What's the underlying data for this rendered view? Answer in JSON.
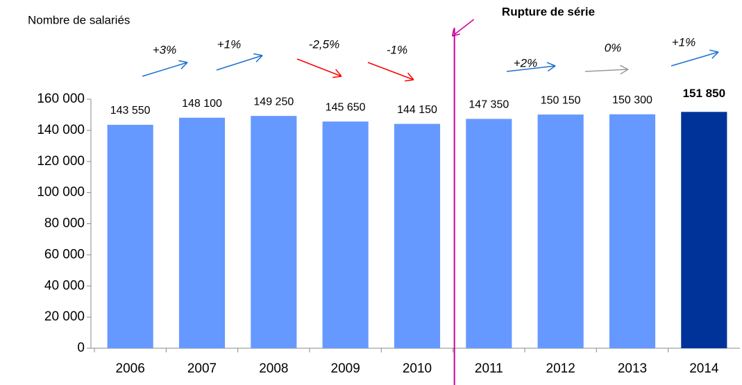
{
  "chart_data": {
    "type": "bar",
    "y_axis_label": "Nombre de salariés",
    "break_label": "Rupture de série",
    "categories": [
      "2006",
      "2007",
      "2008",
      "2009",
      "2010",
      "2011",
      "2012",
      "2013",
      "2014"
    ],
    "values": [
      143550,
      148100,
      149250,
      145650,
      144150,
      147350,
      150150,
      150300,
      151850
    ],
    "value_labels": [
      "143 550",
      "148 100",
      "149 250",
      "145 650",
      "144 150",
      "147 350",
      "150 150",
      "150 300",
      "151 850"
    ],
    "colors": [
      "#6699ff",
      "#6699ff",
      "#6699ff",
      "#6699ff",
      "#6699ff",
      "#6699ff",
      "#6699ff",
      "#6699ff",
      "#003399"
    ],
    "ylim": [
      0,
      160000
    ],
    "yticks": [
      0,
      {
        "value": 20000,
        "label": "20 000"
      },
      {
        "value": 40000,
        "label": "40 000"
      },
      {
        "value": 60000,
        "label": "60 000"
      },
      {
        "value": 80000,
        "label": "80 000"
      },
      {
        "value": 100000,
        "label": "100 000"
      },
      {
        "value": 120000,
        "label": "120 000"
      },
      {
        "value": 140000,
        "label": "140 000"
      },
      {
        "value": 160000,
        "label": "160 000"
      }
    ],
    "annotations": [
      {
        "text": "+3%",
        "color": "#1a6fd0"
      },
      {
        "text": "+1%",
        "color": "#1a6fd0"
      },
      {
        "text": "-2,5%",
        "color": "#ff0000"
      },
      {
        "text": "-1%",
        "color": "#ff0000"
      },
      {
        "text": "+2%",
        "color": "#1a6fd0"
      },
      {
        "text": "0%",
        "color": "#999999"
      },
      {
        "text": "+1%",
        "color": "#1a6fd0"
      }
    ],
    "break_color": "#cc0099"
  }
}
